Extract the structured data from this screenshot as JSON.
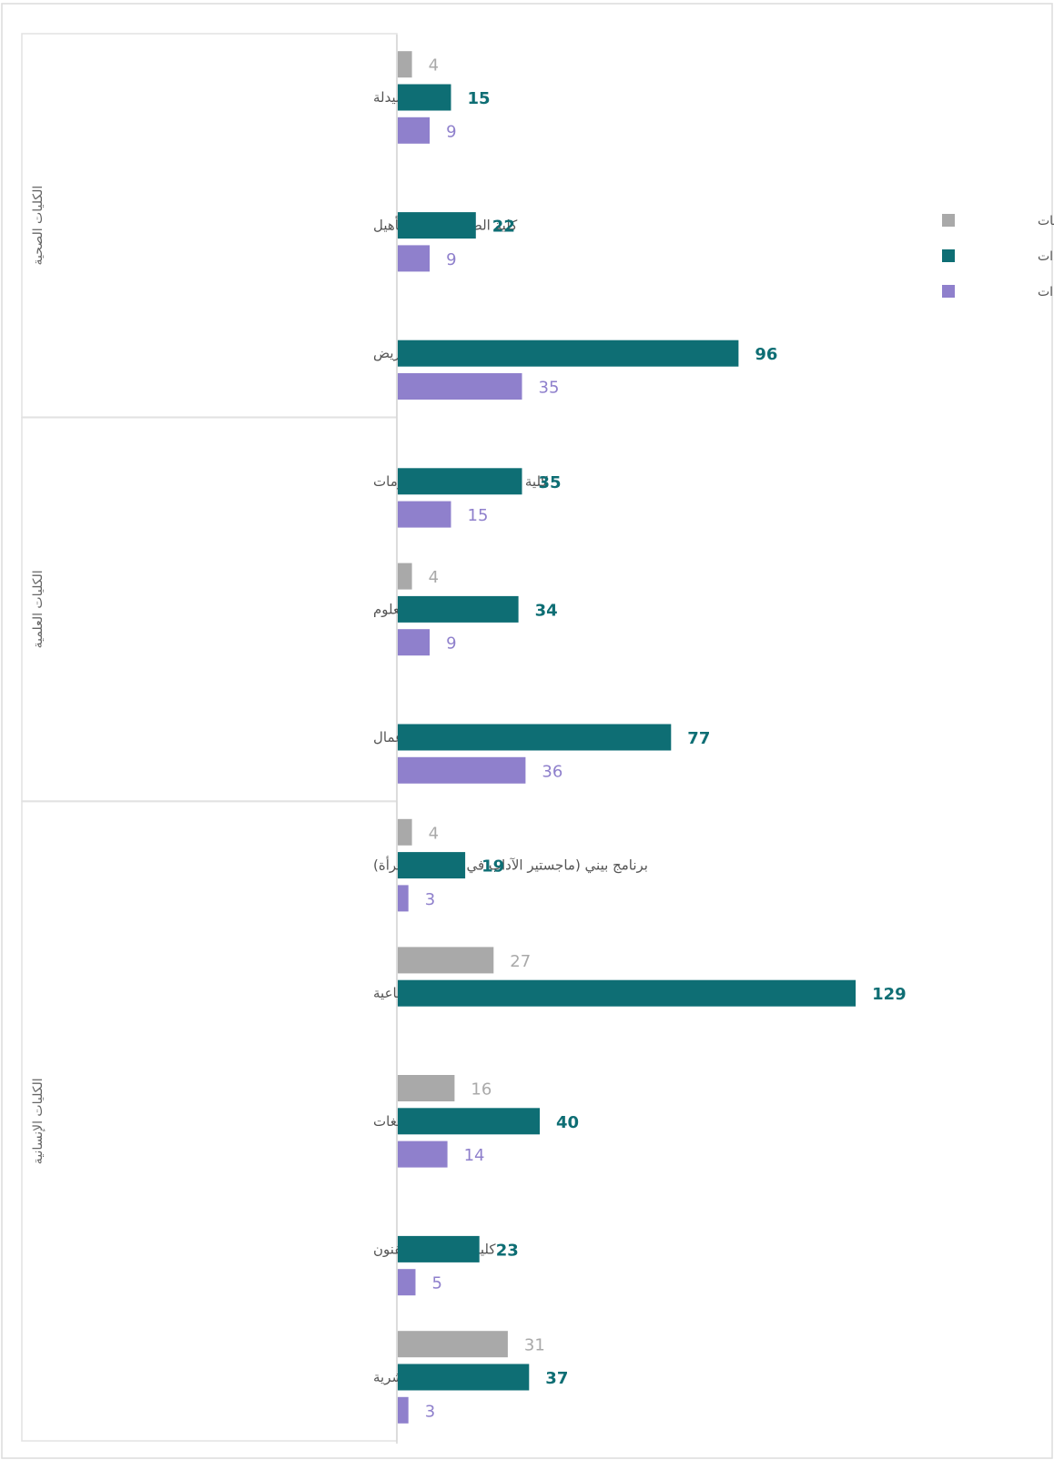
{
  "colors": {
    "الخريجات": "#a9a9a9",
    "المقيدات": "#0e6e74",
    "المستجدات": "#8f80cc"
  },
  "chart_data": {
    "type": "bar",
    "orientation": "horizontal",
    "grid": false,
    "legend_position": "right",
    "series_names": [
      "الخريجات",
      "المقيدات",
      "المستجدات"
    ],
    "groups": [
      {
        "label": "الكليات الصحية",
        "categories": [
          {
            "label": "كلية الصيدلة",
            "values": {
              "الخريجات": 4,
              "المقيدات": 15,
              "المستجدات": 9
            }
          },
          {
            "label": "كلية الصحة وعلوم التأهيل",
            "values": {
              "المقيدات": 22,
              "المستجدات": 9
            }
          },
          {
            "label": "كلية التمريض",
            "values": {
              "المقيدات": 96,
              "المستجدات": 35
            }
          }
        ]
      },
      {
        "label": "الكليات العلمية",
        "categories": [
          {
            "label": "كلية علوم الحاسب والمعلومات",
            "values": {
              "المقيدات": 35,
              "المستجدات": 15
            }
          },
          {
            "label": "كلية العلوم",
            "values": {
              "الخريجات": 4,
              "المقيدات": 34,
              "المستجدات": 9
            }
          },
          {
            "label": "كلية إدارة الأعمال",
            "values": {
              "المقيدات": 77,
              "المستجدات": 36
            }
          }
        ]
      },
      {
        "label": "الكليات الإنسانية",
        "categories": [
          {
            "label": "برنامج بيني (ماجستير الآداب في دراسات المرأة)",
            "values": {
              "الخريجات": 4,
              "المقيدات": 19,
              "المستجدات": 3
            }
          },
          {
            "label": "كلية العلوم الإنسانية والاجتماعية",
            "values": {
              "الخريجات": 27,
              "المقيدات": 129
            }
          },
          {
            "label": "كلية اللغات",
            "values": {
              "الخريجات": 16,
              "المقيدات": 40,
              "المستجدات": 14
            }
          },
          {
            "label": "كلية التصاميم والفنون",
            "values": {
              "المقيدات": 23,
              "المستجدات": 5
            }
          },
          {
            "label": "كلية التربية والتنمية البشرية",
            "values": {
              "الخريجات": 31,
              "المقيدات": 37,
              "المستجدات": 3
            }
          }
        ]
      }
    ]
  }
}
